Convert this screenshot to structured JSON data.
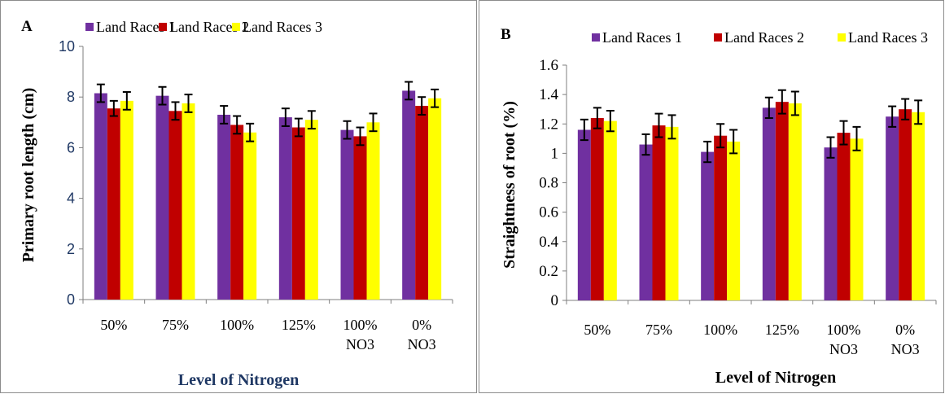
{
  "chart_data": [
    {
      "type": "bar",
      "panel_label": "A",
      "title": "",
      "xlabel": "Level of Nitrogen",
      "ylabel": "Primary root length (cm)",
      "ylim": [
        0,
        10
      ],
      "yticks": [
        "0",
        "2",
        "4",
        "6",
        "8",
        "10"
      ],
      "categories": [
        [
          "50%"
        ],
        [
          "75%"
        ],
        [
          "100%"
        ],
        [
          "125%"
        ],
        [
          "100%",
          "NO3"
        ],
        [
          "0%",
          "NO3"
        ]
      ],
      "series": [
        {
          "name": "Land Races 1",
          "color": "#7030a0",
          "values": [
            8.15,
            8.05,
            7.3,
            7.2,
            6.7,
            8.25
          ],
          "errors": [
            0.35,
            0.35,
            0.35,
            0.35,
            0.35,
            0.35
          ]
        },
        {
          "name": "Land Races 2",
          "color": "#c00000",
          "values": [
            7.55,
            7.45,
            6.9,
            6.8,
            6.45,
            7.65
          ],
          "errors": [
            0.3,
            0.35,
            0.35,
            0.35,
            0.35,
            0.35
          ]
        },
        {
          "name": "Land Races 3",
          "color": "#ffff00",
          "values": [
            7.85,
            7.75,
            6.6,
            7.1,
            7.0,
            7.95
          ],
          "errors": [
            0.35,
            0.35,
            0.35,
            0.35,
            0.35,
            0.35
          ]
        }
      ],
      "legend": "top",
      "grid": false,
      "x_label_color": "#1f3864",
      "y_tick_color": "#1f3864"
    },
    {
      "type": "bar",
      "panel_label": "B",
      "title": "",
      "xlabel": "Level of Nitrogen",
      "ylabel": "Straightness of root (%)",
      "ylim": [
        0,
        1.6
      ],
      "yticks": [
        "0",
        "0.2",
        "0.4",
        "0.6",
        "0.8",
        "1",
        "1.2",
        "1.4",
        "1.6"
      ],
      "categories": [
        [
          "50%"
        ],
        [
          "75%"
        ],
        [
          "100%"
        ],
        [
          "125%"
        ],
        [
          "100%",
          "NO3"
        ],
        [
          "0%",
          "NO3"
        ]
      ],
      "series": [
        {
          "name": "Land Races 1",
          "color": "#7030a0",
          "values": [
            1.16,
            1.06,
            1.01,
            1.31,
            1.04,
            1.25
          ],
          "errors": [
            0.07,
            0.07,
            0.07,
            0.07,
            0.07,
            0.07
          ]
        },
        {
          "name": "Land Races 2",
          "color": "#c00000",
          "values": [
            1.24,
            1.19,
            1.12,
            1.35,
            1.14,
            1.3
          ],
          "errors": [
            0.07,
            0.08,
            0.08,
            0.08,
            0.08,
            0.07
          ]
        },
        {
          "name": "Land Races 3",
          "color": "#ffff00",
          "values": [
            1.22,
            1.18,
            1.08,
            1.34,
            1.1,
            1.28
          ],
          "errors": [
            0.07,
            0.08,
            0.08,
            0.08,
            0.08,
            0.08
          ]
        }
      ],
      "legend": "top",
      "grid": false,
      "x_label_color": "#000000",
      "y_tick_color": "#000000"
    }
  ]
}
